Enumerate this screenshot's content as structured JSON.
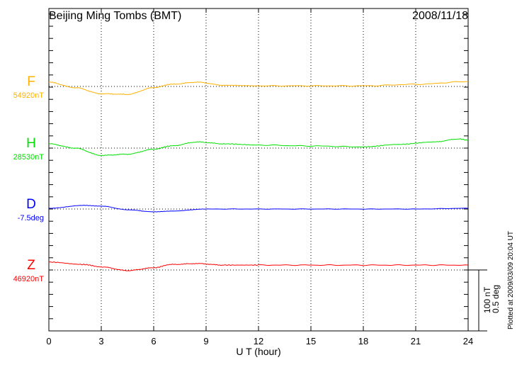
{
  "chart_data": {
    "type": "line",
    "title": "Beijing Ming Tombs (BMT)",
    "date": "2008/11/18",
    "xlabel": "U T (hour)",
    "xlim": [
      0,
      24
    ],
    "xticks": [
      "0",
      "3",
      "6",
      "9",
      "12",
      "15",
      "18",
      "21",
      "24"
    ],
    "grid": true,
    "scale_label_1": "100 nT",
    "scale_label_2": "0.5 deg",
    "plotted_note": "Plotted at 2009/03/09 20:04 UT",
    "series": [
      {
        "name": "F",
        "baseline_label": "54920nT",
        "color": "#ffb000",
        "unit": "nT",
        "x": [
          0,
          1.5,
          3,
          4.5,
          6,
          7,
          8.5,
          10,
          12,
          15,
          18,
          21,
          24
        ],
        "y": [
          7,
          -2,
          -12,
          -13,
          -2,
          3.5,
          7,
          2,
          1,
          1,
          1,
          3.5,
          8
        ]
      },
      {
        "name": "H",
        "baseline_label": "28530nT",
        "color": "#00e000",
        "unit": "nT",
        "x": [
          0,
          1.5,
          3,
          4.5,
          6,
          7,
          8.5,
          10,
          12,
          15,
          18,
          20,
          22,
          23.5,
          24
        ],
        "y": [
          7,
          0,
          -12,
          -10,
          -2,
          3.5,
          10,
          7,
          5,
          3.5,
          2,
          6,
          10,
          15,
          13
        ]
      },
      {
        "name": "D",
        "baseline_label": "-7.5deg",
        "color": "#0000ff",
        "unit": "deg",
        "x": [
          0,
          2,
          3,
          4.5,
          6,
          7,
          9,
          12,
          15,
          18,
          21,
          24
        ],
        "y": [
          0.006,
          0.03,
          0.024,
          -0.006,
          -0.023,
          -0.017,
          0,
          0,
          0,
          0,
          0,
          0.006
        ]
      },
      {
        "name": "Z",
        "baseline_label": "46920nT",
        "color": "#ff0000",
        "unit": "nT",
        "x": [
          0,
          2,
          3,
          4.5,
          6,
          7,
          8.5,
          10,
          12,
          15,
          18,
          21,
          24
        ],
        "y": [
          13,
          9,
          5,
          -1,
          3.5,
          9,
          10.5,
          8,
          8,
          8,
          8,
          8,
          8
        ]
      }
    ]
  }
}
